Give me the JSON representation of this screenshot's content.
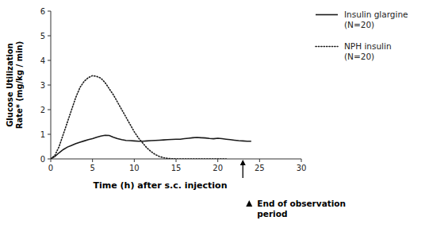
{
  "chart_data": {
    "type": "line",
    "title": "",
    "xlabel": "Time (h) after s.c. injection",
    "ylabel": "Glucose Utilization\nRate* (mg/kg / min)",
    "xlim": [
      0,
      30
    ],
    "ylim": [
      0,
      6
    ],
    "xticks": [
      0,
      5,
      10,
      15,
      20,
      25,
      30
    ],
    "yticks": [
      0,
      1,
      2,
      3,
      4,
      5,
      6
    ],
    "grid": false,
    "legend": "right",
    "series": [
      {
        "name": "Insulin glargine\n(N=20)",
        "color": "#1a1a1a",
        "line_style": "solid",
        "x": [
          0,
          0.5,
          1,
          1.5,
          2,
          2.5,
          3,
          3.5,
          4,
          4.5,
          5,
          5.5,
          6,
          6.5,
          7,
          7.5,
          8,
          8.5,
          9,
          9.5,
          10,
          10.5,
          11,
          11.5,
          12,
          12.5,
          13,
          13.5,
          14,
          14.5,
          15,
          15.5,
          16,
          16.5,
          17,
          17.5,
          18,
          18.5,
          19,
          19.5,
          20,
          20.5,
          21,
          21.5,
          22,
          22.5,
          23,
          23.5,
          24
        ],
        "values": [
          0,
          0.1,
          0.25,
          0.38,
          0.48,
          0.55,
          0.62,
          0.68,
          0.73,
          0.78,
          0.82,
          0.88,
          0.93,
          0.96,
          0.95,
          0.88,
          0.82,
          0.78,
          0.75,
          0.74,
          0.73,
          0.72,
          0.72,
          0.73,
          0.74,
          0.75,
          0.76,
          0.77,
          0.78,
          0.79,
          0.8,
          0.8,
          0.82,
          0.84,
          0.86,
          0.87,
          0.86,
          0.85,
          0.83,
          0.82,
          0.84,
          0.82,
          0.8,
          0.78,
          0.76,
          0.74,
          0.73,
          0.72,
          0.72
        ]
      },
      {
        "name": "NPH insulin\n(N=20)",
        "color": "#1a1a1a",
        "line_style": "dotted",
        "x": [
          0,
          0.5,
          1,
          1.5,
          2,
          2.5,
          3,
          3.5,
          4,
          4.5,
          5,
          5.5,
          6,
          6.5,
          7,
          7.5,
          8,
          8.5,
          9,
          9.5,
          10,
          10.5,
          11,
          11.5,
          12,
          12.5,
          13,
          13.5,
          14,
          14.5,
          15,
          15.5,
          16,
          16.5,
          17,
          17.5,
          18,
          18.5,
          19,
          19.5,
          20,
          20.5,
          21
        ],
        "values": [
          0,
          0.15,
          0.5,
          1.0,
          1.5,
          2.0,
          2.5,
          2.9,
          3.15,
          3.3,
          3.38,
          3.35,
          3.28,
          3.1,
          2.85,
          2.6,
          2.3,
          2.0,
          1.7,
          1.4,
          1.1,
          0.85,
          0.65,
          0.45,
          0.3,
          0.18,
          0.1,
          0.05,
          0.02,
          0.01,
          0.0,
          0.0,
          0.0,
          0.0,
          0.0,
          0.0,
          0.0,
          0.0,
          0.0,
          0.0,
          0.0,
          0.0,
          0.0
        ]
      }
    ],
    "annotation": {
      "x": 23,
      "text": "End of observation\nperiod"
    }
  }
}
